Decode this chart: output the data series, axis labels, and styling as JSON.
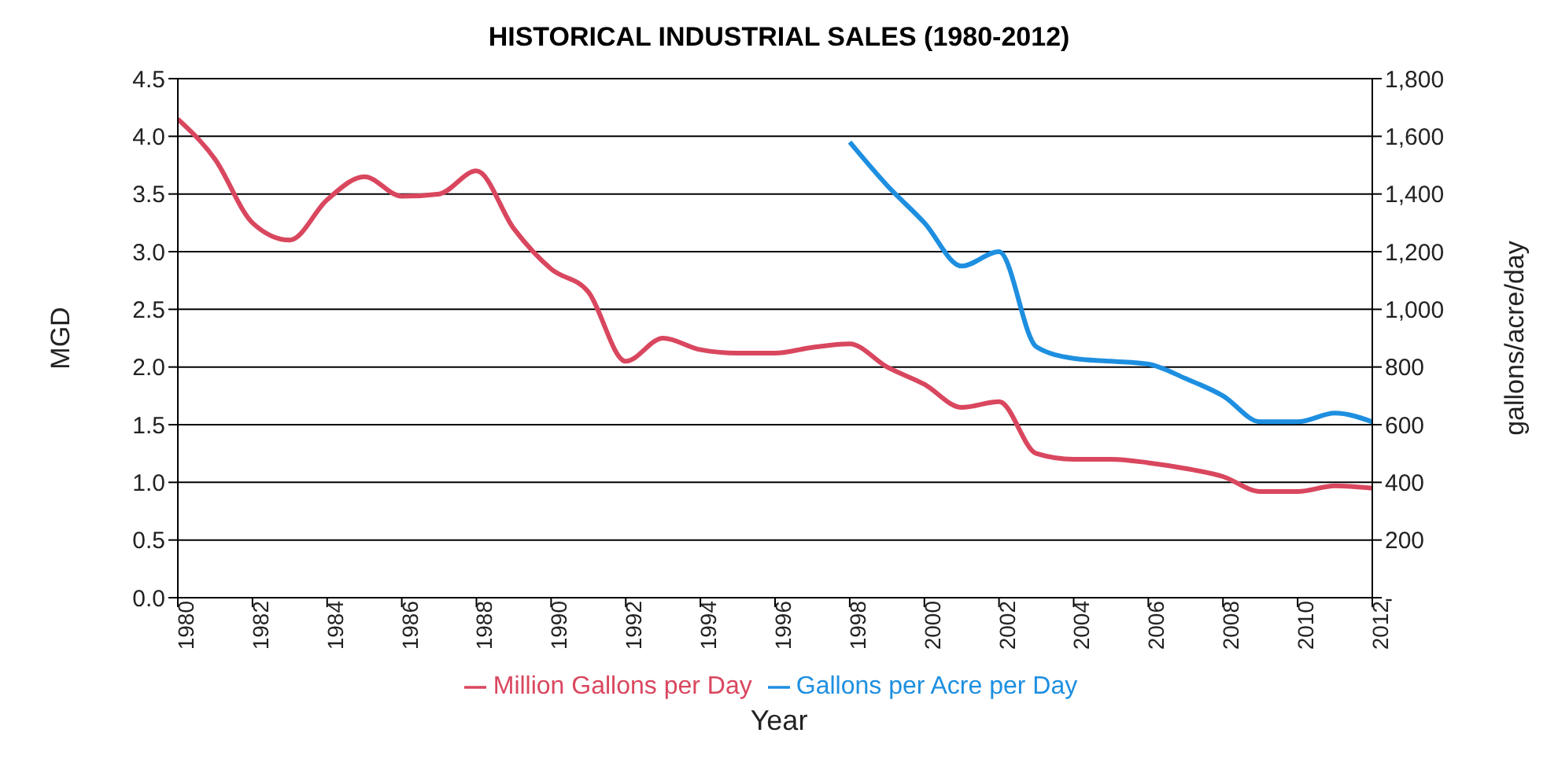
{
  "chart_data": {
    "type": "line",
    "title": "HISTORICAL INDUSTRIAL SALES (1980-2012)",
    "xlabel": "Year",
    "ylabel": "MGD",
    "y2label": "gallons/acre/day",
    "xlim": [
      1980,
      2012
    ],
    "xticks": [
      1980,
      1982,
      1984,
      1986,
      1988,
      1990,
      1992,
      1994,
      1996,
      1998,
      2000,
      2002,
      2004,
      2006,
      2008,
      2010,
      2012
    ],
    "ylim": [
      0,
      4.5
    ],
    "yticks": [
      {
        "value": 0,
        "label": "0.0"
      },
      0.5,
      {
        "value": 1,
        "label": "1.0"
      },
      1.5,
      {
        "value": 2,
        "label": "2.0"
      },
      2.5,
      {
        "value": 3,
        "label": "3.0"
      },
      3.5,
      {
        "value": 4,
        "label": "4.0"
      },
      4.5
    ],
    "y2lim": [
      0,
      1800
    ],
    "y2ticks": [
      {
        "value": 0,
        "label": "-"
      },
      200,
      400,
      600,
      800,
      {
        "value": 1000,
        "label": "1,000"
      },
      {
        "value": 1200,
        "label": "1,200"
      },
      {
        "value": 1400,
        "label": "1,400"
      },
      {
        "value": 1600,
        "label": "1,600"
      },
      {
        "value": 1800,
        "label": "1,800"
      }
    ],
    "grid": "y",
    "legend": "bottom",
    "marker": "none",
    "line_style": "solid",
    "series": [
      {
        "name": "Million Gallons per Day",
        "color": "#d9475f",
        "x": [
          1980,
          1981,
          1982,
          1983,
          1984,
          1985,
          1986,
          1987,
          1988,
          1989,
          1990,
          1991,
          1992,
          1993,
          1994,
          1995,
          1996,
          1997,
          1998,
          1999,
          2000,
          2001,
          2002,
          2003,
          2004,
          2005,
          2006,
          2007,
          2008,
          2009,
          2010,
          2011,
          2012
        ],
        "values": [
          4.15,
          3.8,
          3.25,
          3.1,
          3.45,
          3.65,
          3.48,
          3.5,
          3.7,
          3.2,
          2.85,
          2.65,
          2.05,
          2.25,
          2.15,
          2.12,
          2.12,
          2.17,
          2.2,
          2.0,
          1.85,
          1.65,
          1.7,
          1.25,
          1.2,
          1.2,
          1.17,
          1.12,
          1.05,
          0.92,
          0.92,
          0.97,
          0.95
        ]
      },
      {
        "name": "Gallons per Acre per Day",
        "color": "#1e8fe0",
        "axis": "y2",
        "x": [
          1998,
          1999,
          2000,
          2001,
          2002,
          2003,
          2004,
          2005,
          2006,
          2007,
          2008,
          2009,
          2010,
          2011,
          2012
        ],
        "values": [
          1580,
          1430,
          1300,
          1150,
          1200,
          870,
          830,
          820,
          810,
          760,
          700,
          610,
          610,
          640,
          610
        ]
      }
    ]
  }
}
